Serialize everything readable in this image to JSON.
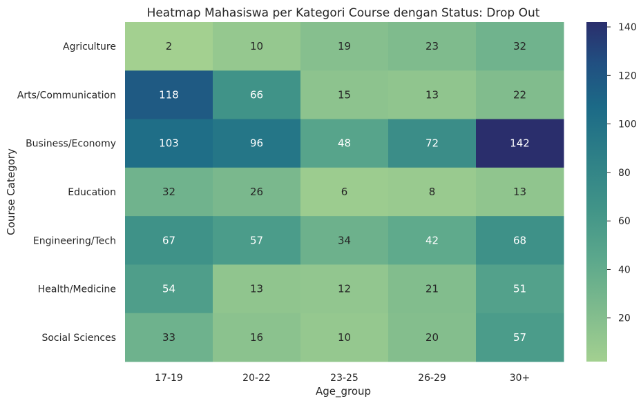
{
  "chart_data": {
    "type": "heatmap",
    "title": "Heatmap Mahasiswa per Kategori Course dengan Status: Drop Out",
    "xlabel": "Age_group",
    "ylabel": "Course Category",
    "x_categories": [
      "17-19",
      "20-22",
      "23-25",
      "26-29",
      "30+"
    ],
    "y_categories": [
      "Agriculture",
      "Arts/Communication",
      "Business/Economy",
      "Education",
      "Engineering/Tech",
      "Health/Medicine",
      "Social Sciences"
    ],
    "values": [
      [
        2,
        10,
        19,
        23,
        32
      ],
      [
        118,
        66,
        15,
        13,
        22
      ],
      [
        103,
        96,
        48,
        72,
        142
      ],
      [
        32,
        26,
        6,
        8,
        13
      ],
      [
        67,
        57,
        34,
        42,
        68
      ],
      [
        54,
        13,
        12,
        21,
        51
      ],
      [
        33,
        16,
        10,
        20,
        57
      ]
    ],
    "colorbar": {
      "colormap": "crest",
      "range": [
        2,
        142
      ],
      "ticks": [
        "20",
        "40",
        "60",
        "80",
        "100",
        "120",
        "140"
      ],
      "low_color": "#a3d090",
      "high_color": "#2a2e6c"
    }
  }
}
